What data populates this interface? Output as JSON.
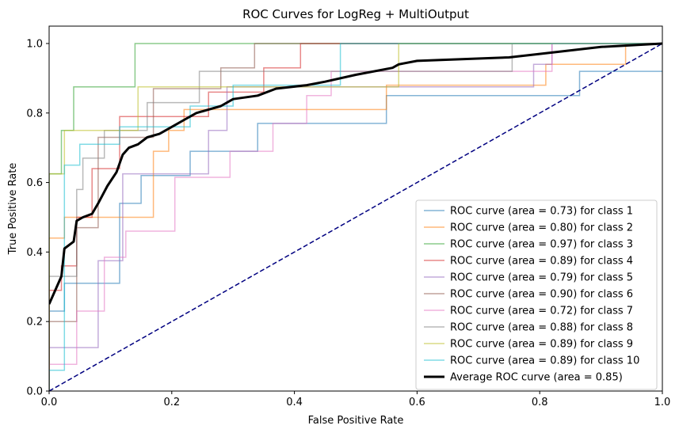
{
  "chart_data": {
    "type": "line",
    "title": "ROC Curves for LogReg + MultiOutput",
    "xlabel": "False Positive Rate",
    "ylabel": "True Positive Rate",
    "xlim": [
      0,
      1
    ],
    "ylim": [
      0,
      1.05
    ],
    "x_ticks": [
      "0.0",
      "0.2",
      "0.4",
      "0.6",
      "0.8",
      "1.0"
    ],
    "y_ticks": [
      "0.0",
      "0.2",
      "0.4",
      "0.6",
      "0.8",
      "1.0"
    ],
    "grid": false,
    "legend_position": "lower-right",
    "series": [
      {
        "name": "ROC curve (area = 0.73) for class 1",
        "color": "#1f77b4",
        "line_style": "step",
        "x": [
          0,
          0,
          0.025,
          0.025,
          0.115,
          0.115,
          0.15,
          0.15,
          0.23,
          0.23,
          0.34,
          0.34,
          0.55,
          0.55,
          0.865,
          0.865,
          1.0
        ],
        "y": [
          0,
          0.23,
          0.23,
          0.31,
          0.31,
          0.54,
          0.54,
          0.62,
          0.62,
          0.69,
          0.69,
          0.77,
          0.77,
          0.85,
          0.85,
          0.92,
          0.92
        ]
      },
      {
        "name": "ROC curve (area = 0.80) for class 2",
        "color": "#ff7f0e",
        "line_style": "step",
        "x": [
          0,
          0,
          0.025,
          0.025,
          0.17,
          0.17,
          0.195,
          0.195,
          0.22,
          0.22,
          0.25,
          0.25,
          0.55,
          0.55,
          0.635,
          0.635,
          0.81,
          0.81,
          0.94,
          0.94,
          1.0
        ],
        "y": [
          0,
          0.44,
          0.44,
          0.5,
          0.5,
          0.69,
          0.69,
          0.75,
          0.75,
          0.81,
          0.81,
          0.81,
          0.81,
          0.88,
          0.88,
          0.88,
          0.88,
          0.94,
          0.94,
          1.0,
          1.0
        ]
      },
      {
        "name": "ROC curve (area = 0.97) for class 3",
        "color": "#2ca02c",
        "line_style": "step",
        "x": [
          0,
          0,
          0.02,
          0.02,
          0.04,
          0.04,
          0.14,
          0.14,
          1.0
        ],
        "y": [
          0,
          0.625,
          0.625,
          0.75,
          0.75,
          0.875,
          0.875,
          1.0,
          1.0
        ]
      },
      {
        "name": "ROC curve (area = 0.89) for class 4",
        "color": "#d62728",
        "line_style": "step",
        "x": [
          0,
          0,
          0.02,
          0.02,
          0.045,
          0.045,
          0.07,
          0.07,
          0.115,
          0.115,
          0.26,
          0.26,
          0.35,
          0.35,
          0.41,
          0.41,
          1.0
        ],
        "y": [
          0,
          0.29,
          0.29,
          0.36,
          0.36,
          0.5,
          0.5,
          0.64,
          0.64,
          0.79,
          0.79,
          0.86,
          0.86,
          0.93,
          0.93,
          1.0,
          1.0
        ]
      },
      {
        "name": "ROC curve (area = 0.79) for class 5",
        "color": "#9467bd",
        "line_style": "step",
        "x": [
          0,
          0,
          0.08,
          0.08,
          0.12,
          0.12,
          0.26,
          0.26,
          0.29,
          0.29,
          0.79,
          0.79,
          0.82,
          0.82,
          1.0
        ],
        "y": [
          0,
          0.125,
          0.125,
          0.375,
          0.375,
          0.625,
          0.625,
          0.75,
          0.75,
          0.875,
          0.875,
          0.94,
          0.94,
          1.0,
          1.0
        ]
      },
      {
        "name": "ROC curve (area = 0.90) for class 6",
        "color": "#8c564b",
        "line_style": "step",
        "x": [
          0,
          0,
          0.045,
          0.045,
          0.08,
          0.08,
          0.17,
          0.17,
          0.28,
          0.28,
          0.335,
          0.335,
          1.0
        ],
        "y": [
          0,
          0.2,
          0.2,
          0.47,
          0.47,
          0.73,
          0.73,
          0.87,
          0.87,
          0.93,
          0.93,
          1.0,
          1.0
        ]
      },
      {
        "name": "ROC curve (area = 0.72) for class 7",
        "color": "#e377c2",
        "line_style": "step",
        "x": [
          0,
          0,
          0.045,
          0.045,
          0.09,
          0.09,
          0.125,
          0.125,
          0.205,
          0.205,
          0.295,
          0.295,
          0.365,
          0.365,
          0.42,
          0.42,
          0.46,
          0.46,
          0.82,
          0.82,
          1.0
        ],
        "y": [
          0,
          0.077,
          0.077,
          0.23,
          0.23,
          0.385,
          0.385,
          0.46,
          0.46,
          0.615,
          0.615,
          0.69,
          0.69,
          0.77,
          0.77,
          0.85,
          0.85,
          0.92,
          0.92,
          1.0,
          1.0
        ]
      },
      {
        "name": "ROC curve (area = 0.88) for class 8",
        "color": "#7f7f7f",
        "line_style": "step",
        "x": [
          0,
          0,
          0.045,
          0.045,
          0.055,
          0.055,
          0.09,
          0.09,
          0.16,
          0.16,
          0.245,
          0.245,
          0.755,
          0.755,
          1.0
        ],
        "y": [
          0,
          0.33,
          0.33,
          0.58,
          0.58,
          0.67,
          0.67,
          0.75,
          0.75,
          0.83,
          0.83,
          0.92,
          0.92,
          1.0,
          1.0
        ]
      },
      {
        "name": "ROC curve (area = 0.89) for class 9",
        "color": "#bcbd22",
        "line_style": "step",
        "x": [
          0,
          0,
          0.025,
          0.025,
          0.145,
          0.145,
          0.57,
          0.57,
          1.0
        ],
        "y": [
          0,
          0.625,
          0.625,
          0.75,
          0.75,
          0.875,
          0.875,
          1.0,
          1.0
        ]
      },
      {
        "name": "ROC curve (area = 0.89) for class 10",
        "color": "#17becf",
        "line_style": "step",
        "x": [
          0,
          0,
          0.025,
          0.025,
          0.05,
          0.05,
          0.115,
          0.115,
          0.23,
          0.23,
          0.3,
          0.3,
          0.475,
          0.475,
          1.0
        ],
        "y": [
          0,
          0.06,
          0.06,
          0.65,
          0.65,
          0.71,
          0.71,
          0.76,
          0.76,
          0.82,
          0.82,
          0.88,
          0.88,
          1.0,
          1.0
        ]
      },
      {
        "name": "Average ROC curve (area = 0.85)",
        "color": "#000000",
        "line_style": "solid-bold",
        "x": [
          0,
          0.02,
          0.025,
          0.04,
          0.045,
          0.055,
          0.07,
          0.08,
          0.095,
          0.11,
          0.12,
          0.13,
          0.145,
          0.16,
          0.18,
          0.2,
          0.22,
          0.24,
          0.26,
          0.28,
          0.3,
          0.34,
          0.37,
          0.42,
          0.45,
          0.5,
          0.56,
          0.57,
          0.6,
          0.75,
          0.8,
          0.9,
          1.0
        ],
        "y": [
          0.25,
          0.33,
          0.41,
          0.43,
          0.49,
          0.5,
          0.51,
          0.54,
          0.59,
          0.63,
          0.68,
          0.7,
          0.71,
          0.73,
          0.74,
          0.76,
          0.78,
          0.8,
          0.81,
          0.82,
          0.84,
          0.85,
          0.87,
          0.88,
          0.89,
          0.91,
          0.93,
          0.94,
          0.95,
          0.96,
          0.97,
          0.99,
          1.0
        ]
      },
      {
        "name": "",
        "color": "#000080",
        "line_style": "dashed",
        "x": [
          0,
          1
        ],
        "y": [
          0,
          1
        ]
      }
    ]
  }
}
